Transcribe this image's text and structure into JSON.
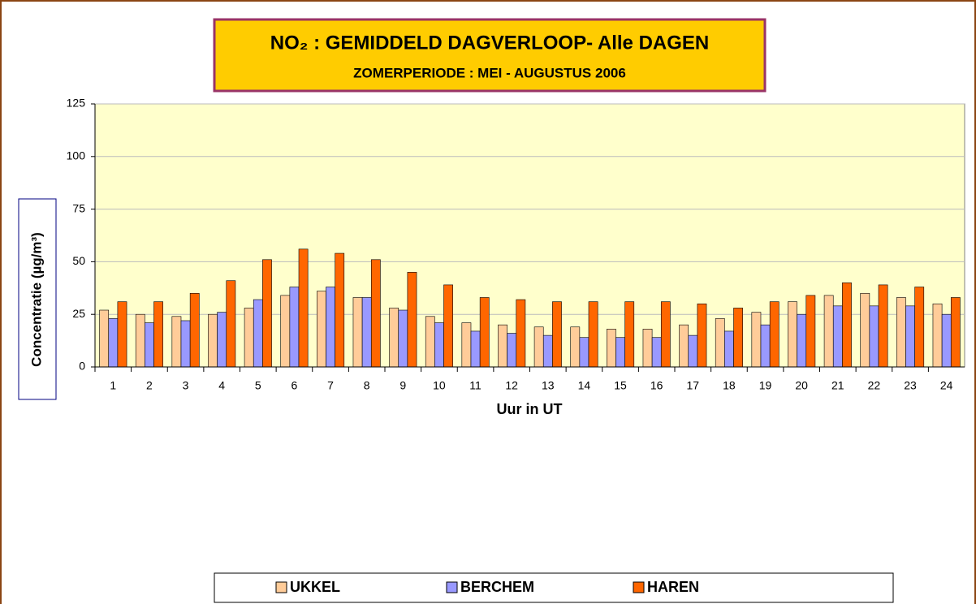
{
  "chart_data": {
    "type": "bar",
    "title": "NO₂ : GEMIDDELD DAGVERLOOP- Alle DAGEN",
    "subtitle": "ZOMERPERIODE : MEI - AUGUSTUS 2006",
    "x_label": "Uur in UT",
    "y_label": "Concentratie (µg/m³)",
    "categories": [
      "1",
      "2",
      "3",
      "4",
      "5",
      "6",
      "7",
      "8",
      "9",
      "10",
      "11",
      "12",
      "13",
      "14",
      "15",
      "16",
      "17",
      "18",
      "19",
      "20",
      "21",
      "22",
      "23",
      "24"
    ],
    "series": [
      {
        "name": "UKKEL",
        "color": "#ffcc99",
        "values": [
          27,
          25,
          24,
          25,
          28,
          34,
          36,
          33,
          28,
          24,
          21,
          20,
          19,
          19,
          18,
          18,
          20,
          23,
          26,
          31,
          34,
          35,
          33,
          30
        ]
      },
      {
        "name": "BERCHEM",
        "color": "#9999ff",
        "values": [
          23,
          21,
          22,
          26,
          32,
          38,
          38,
          33,
          27,
          21,
          17,
          16,
          15,
          14,
          14,
          14,
          15,
          17,
          20,
          25,
          29,
          29,
          29,
          25
        ]
      },
      {
        "name": "HAREN",
        "color": "#ff6600",
        "values": [
          31,
          31,
          35,
          41,
          51,
          56,
          54,
          51,
          45,
          39,
          33,
          32,
          31,
          31,
          31,
          31,
          30,
          28,
          31,
          34,
          40,
          39,
          38,
          33
        ]
      }
    ],
    "ylim": [
      0,
      125
    ],
    "yticks": [
      0,
      25,
      50,
      75,
      100,
      125
    ],
    "grid": true,
    "legend": "bottom"
  }
}
